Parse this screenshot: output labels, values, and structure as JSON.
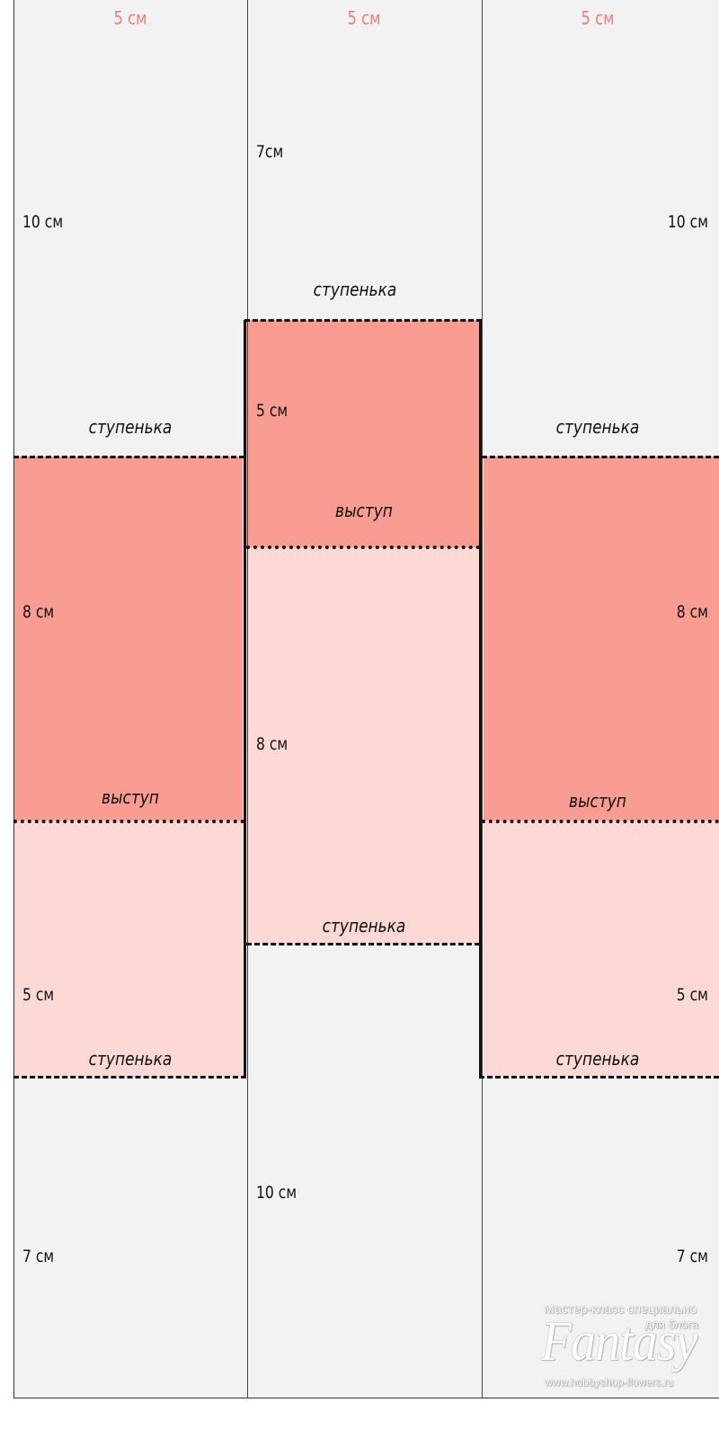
{
  "columns": {
    "left": {
      "width_label": "5 см"
    },
    "center": {
      "width_label": "5 см"
    },
    "right": {
      "width_label": "5 см"
    }
  },
  "labels": {
    "left": {
      "top_height": "10 см",
      "step_1": "ступенька",
      "dark_height": "8 см",
      "ledge": "выступ",
      "light_height": "5 см",
      "step_2": "ступенька",
      "bottom_height": "7 см"
    },
    "center": {
      "top_height": "7см",
      "step_1": "ступенька",
      "dark_height": "5 см",
      "ledge": "выступ",
      "light_height": "8 см",
      "step_2": "ступенька",
      "bottom_height": "10 см"
    },
    "right": {
      "top_height": "10 см",
      "step_1": "ступенька",
      "dark_height": "8 см",
      "ledge": "выступ",
      "light_height": "5 см",
      "step_2": "ступенька",
      "bottom_height": "7 см"
    }
  },
  "watermark": {
    "line1": "Мастер-класс специально",
    "line2": "для блога",
    "logo": "Fantasy",
    "url": "www.hobbyshop-flowers.ru"
  },
  "colors": {
    "background": "#f2f2f2",
    "dark_fill": "#f99d93",
    "light_fill": "#fdd9d5",
    "accent_text": "#f07e72"
  }
}
